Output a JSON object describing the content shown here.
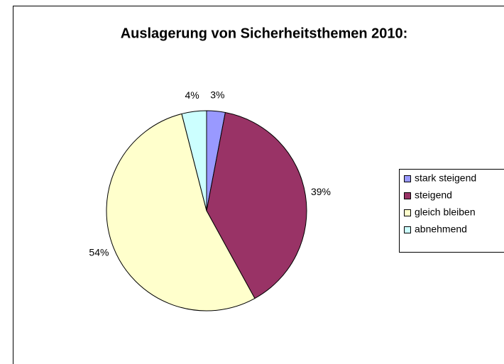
{
  "chart_data": {
    "type": "pie",
    "title": "Auslagerung von Sicherheitsthemen 2010:",
    "categories": [
      "stark steigend",
      "steigend",
      "gleich bleiben",
      "abnehmend"
    ],
    "values": [
      3,
      39,
      54,
      4
    ],
    "value_labels": [
      "3%",
      "39%",
      "54%",
      "4%"
    ],
    "colors": [
      "#9999ff",
      "#993366",
      "#ffffcc",
      "#ccffff"
    ],
    "legend": "right"
  }
}
